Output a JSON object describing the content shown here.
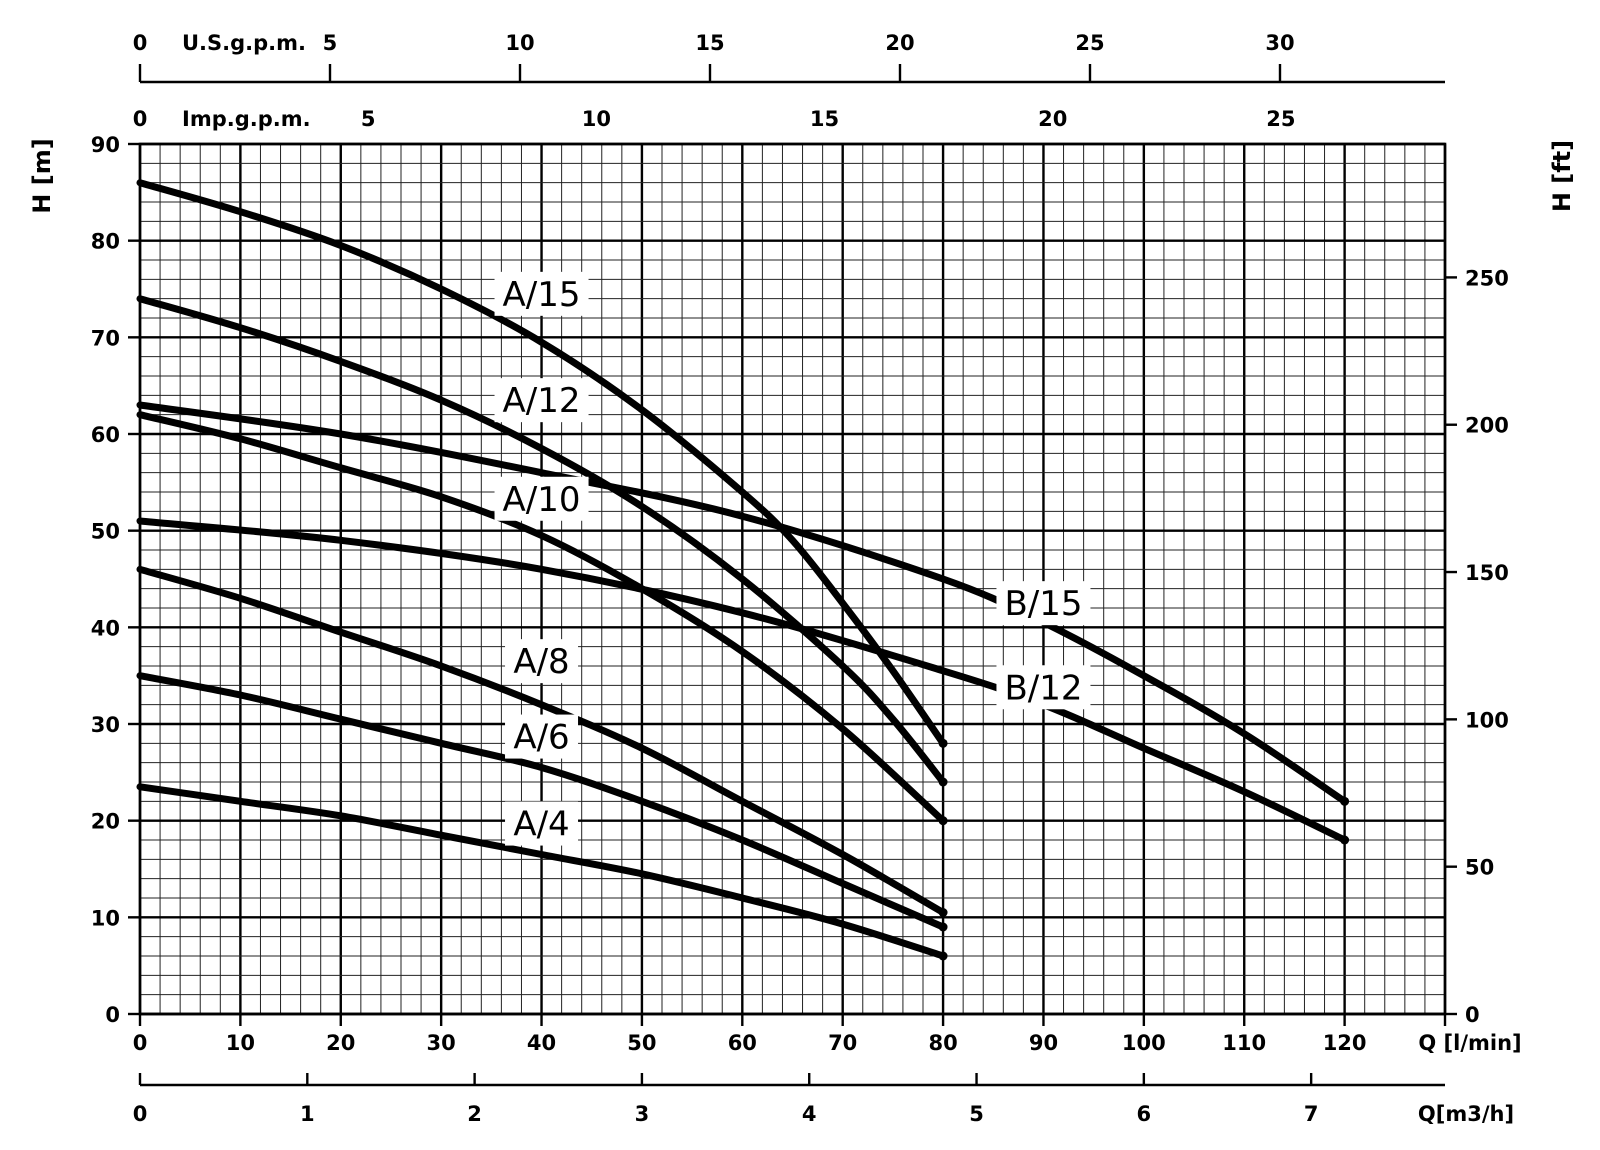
{
  "chart_data": {
    "type": "line",
    "title": "",
    "ylabel_left": "H [m]",
    "ylabel_right": "H [ft]",
    "x_axes": {
      "lmin": {
        "label": "Q [l/min]",
        "range": [
          0,
          130
        ],
        "ticks": [
          0,
          10,
          20,
          30,
          40,
          50,
          60,
          70,
          80,
          90,
          100,
          110,
          120
        ]
      },
      "m3h": {
        "label": "Q[m3/h]",
        "ticks": [
          0,
          1,
          2,
          3,
          4,
          5,
          6,
          7
        ]
      },
      "usgpm": {
        "label": "U.S.g.p.m.",
        "ticks": [
          0,
          5,
          10,
          15,
          20,
          25,
          30
        ]
      },
      "impgpm": {
        "label": "Imp.g.p.m.",
        "ticks": [
          0,
          5,
          10,
          15,
          20,
          25
        ]
      }
    },
    "y_axes": {
      "m": {
        "range": [
          0,
          90
        ],
        "ticks": [
          0,
          10,
          20,
          30,
          40,
          50,
          60,
          70,
          80,
          90
        ]
      },
      "ft": {
        "ticks": [
          0,
          50,
          100,
          150,
          200,
          250
        ]
      }
    },
    "grid": true,
    "series": [
      {
        "name": "A/15",
        "x": [
          0,
          10,
          20,
          30,
          40,
          50,
          60,
          65,
          70,
          75,
          80
        ],
        "y": [
          86,
          83,
          79.5,
          75,
          69.5,
          62.5,
          54,
          49,
          42.5,
          35.5,
          28
        ]
      },
      {
        "name": "A/12",
        "x": [
          0,
          10,
          20,
          30,
          40,
          50,
          60,
          70,
          75,
          80
        ],
        "y": [
          74,
          71,
          67.5,
          63.5,
          58.5,
          52.5,
          45,
          36,
          30.5,
          24
        ]
      },
      {
        "name": "A/10",
        "x": [
          0,
          10,
          20,
          30,
          40,
          50,
          60,
          70,
          80
        ],
        "y": [
          62,
          59.5,
          56.5,
          53.5,
          49.5,
          44,
          37.5,
          29.5,
          20
        ]
      },
      {
        "name": "B/15",
        "x": [
          0,
          20,
          40,
          60,
          80,
          90,
          100,
          110,
          120
        ],
        "y": [
          63,
          60,
          56,
          51.5,
          45,
          40.5,
          35,
          29,
          22
        ]
      },
      {
        "name": "B/12",
        "x": [
          0,
          20,
          40,
          60,
          80,
          90,
          100,
          110,
          120
        ],
        "y": [
          51,
          49,
          46,
          41.5,
          35.5,
          32,
          27.5,
          23,
          18
        ]
      },
      {
        "name": "A/8",
        "x": [
          0,
          10,
          20,
          30,
          40,
          50,
          60,
          70,
          80
        ],
        "y": [
          46,
          43,
          39.5,
          36,
          32,
          27.5,
          22,
          16.5,
          10.5
        ]
      },
      {
        "name": "A/6",
        "x": [
          0,
          10,
          20,
          30,
          40,
          50,
          60,
          70,
          80
        ],
        "y": [
          35,
          33,
          30.5,
          28,
          25.5,
          22,
          18,
          13.5,
          9
        ]
      },
      {
        "name": "A/4",
        "x": [
          0,
          10,
          20,
          30,
          40,
          50,
          60,
          70,
          80
        ],
        "y": [
          23.5,
          22,
          20.5,
          18.5,
          16.5,
          14.5,
          12,
          9.3,
          6
        ]
      }
    ],
    "labels": [
      {
        "text": "A/15",
        "x": 40,
        "y": 74.5
      },
      {
        "text": "A/12",
        "x": 40,
        "y": 63.5
      },
      {
        "text": "A/10",
        "x": 40,
        "y": 53.3
      },
      {
        "text": "A/8",
        "x": 40,
        "y": 36.5
      },
      {
        "text": "A/6",
        "x": 40,
        "y": 28.7
      },
      {
        "text": "A/4",
        "x": 40,
        "y": 19.7
      },
      {
        "text": "B/15",
        "x": 90,
        "y": 42.5
      },
      {
        "text": "B/12",
        "x": 90,
        "y": 33.8
      }
    ]
  }
}
